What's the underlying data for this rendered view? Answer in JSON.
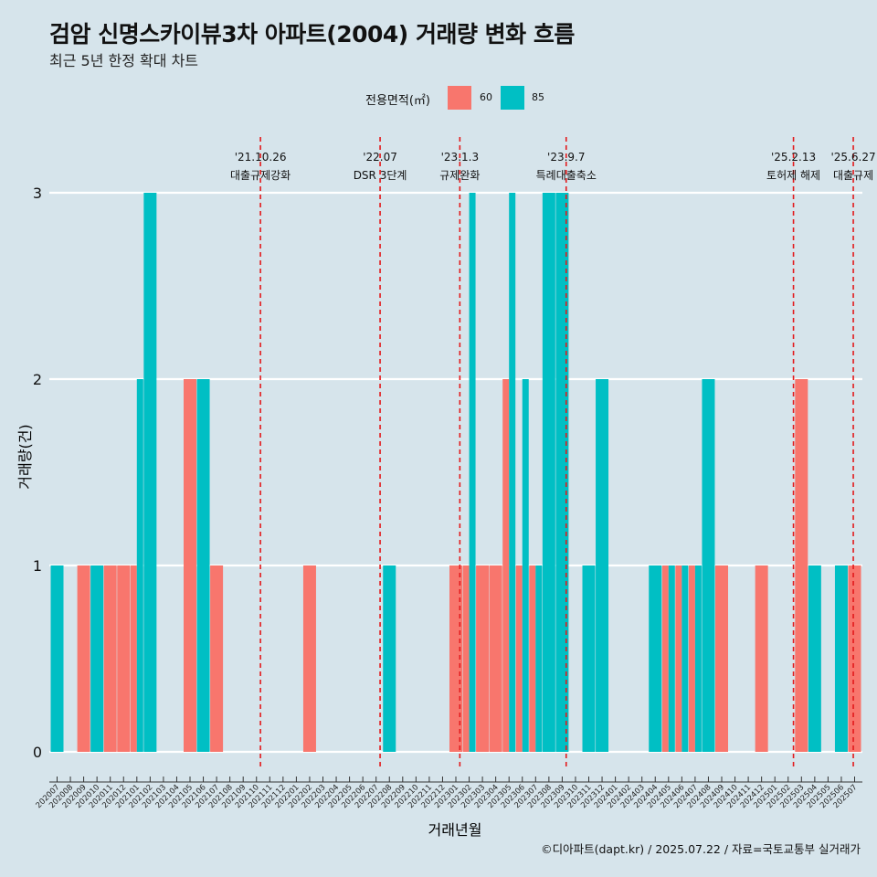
{
  "title": "검암 신명스카이뷰3차 아파트(2004) 거래량 변화 흐름",
  "subtitle": "최근 5년 한정 확대 차트",
  "caption": "©디아파트(dapt.kr) / 2025.07.22 / 자료=국토교통부 실거래가",
  "legend": {
    "title": "전용면적(㎡)",
    "items": [
      {
        "label": "60",
        "color": "#f8766d"
      },
      {
        "label": "85",
        "color": "#00bfc4"
      }
    ]
  },
  "chart_data": {
    "type": "bar",
    "xlabel": "거래년월",
    "ylabel": "거래량(건)",
    "ylim": [
      0,
      3
    ],
    "yticks": [
      0,
      1,
      2,
      3
    ],
    "grid": true,
    "legend_position": "top",
    "categories": [
      "202007",
      "202008",
      "202009",
      "202010",
      "202011",
      "202012",
      "202101",
      "202102",
      "202103",
      "202104",
      "202105",
      "202106",
      "202107",
      "202108",
      "202109",
      "202110",
      "202111",
      "202112",
      "202201",
      "202202",
      "202203",
      "202204",
      "202205",
      "202206",
      "202207",
      "202208",
      "202209",
      "202210",
      "202211",
      "202212",
      "202301",
      "202302",
      "202303",
      "202304",
      "202305",
      "202306",
      "202307",
      "202308",
      "202309",
      "202310",
      "202311",
      "202312",
      "202401",
      "202402",
      "202403",
      "202404",
      "202405",
      "202406",
      "202407",
      "202408",
      "202409",
      "202410",
      "202411",
      "202412",
      "202501",
      "202502",
      "202503",
      "202504",
      "202505",
      "202506",
      "202507"
    ],
    "series": [
      {
        "name": "60",
        "color": "#f8766d",
        "values": [
          0,
          0,
          1,
          0,
          1,
          1,
          1,
          0,
          0,
          0,
          2,
          0,
          1,
          0,
          0,
          0,
          0,
          0,
          0,
          1,
          0,
          0,
          0,
          0,
          0,
          0,
          0,
          0,
          0,
          0,
          1,
          1,
          1,
          1,
          2,
          1,
          1,
          0,
          0,
          0,
          0,
          0,
          0,
          0,
          0,
          0,
          1,
          1,
          1,
          0,
          1,
          0,
          0,
          1,
          0,
          0,
          2,
          0,
          0,
          0,
          1
        ]
      },
      {
        "name": "85",
        "color": "#00bfc4",
        "values": [
          1,
          0,
          0,
          1,
          0,
          0,
          2,
          3,
          0,
          0,
          0,
          2,
          0,
          0,
          0,
          0,
          0,
          0,
          0,
          0,
          0,
          0,
          0,
          0,
          0,
          1,
          0,
          0,
          0,
          0,
          0,
          3,
          0,
          0,
          3,
          2,
          1,
          3,
          3,
          0,
          1,
          2,
          0,
          0,
          0,
          1,
          1,
          1,
          1,
          2,
          0,
          0,
          0,
          0,
          0,
          0,
          0,
          1,
          0,
          1,
          0
        ]
      }
    ],
    "events": [
      {
        "label_date": "'21.10.26",
        "label_text": "대출규제강화",
        "x": 15.3
      },
      {
        "label_date": "'22.07",
        "label_text": "DSR 3단계",
        "x": 24.3
      },
      {
        "label_date": "'23.1.3",
        "label_text": "규제완화",
        "x": 30.3
      },
      {
        "label_date": "'23.9.7",
        "label_text": "특례대출축소",
        "x": 38.3
      },
      {
        "label_date": "'25.2.13",
        "label_text": "토허제 해제",
        "x": 55.4
      },
      {
        "label_date": "'25.6.27",
        "label_text": "대출규제",
        "x": 59.9
      }
    ]
  }
}
